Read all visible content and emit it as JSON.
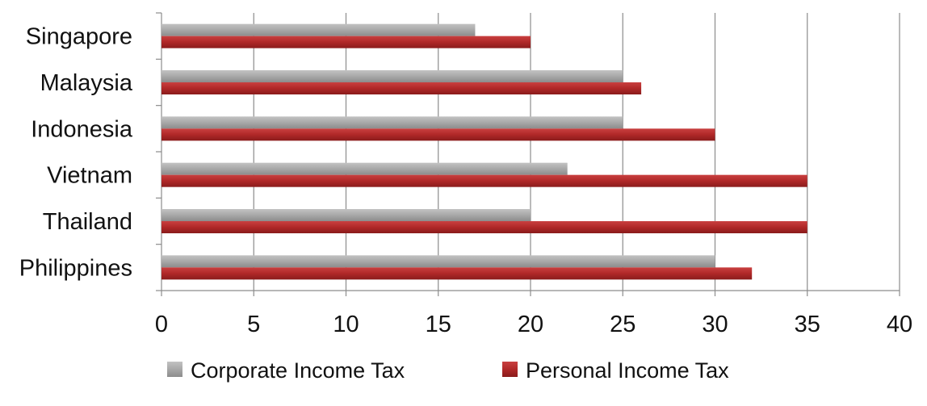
{
  "chart_data": {
    "type": "bar",
    "orientation": "horizontal",
    "categories": [
      "Singapore",
      "Malaysia",
      "Indonesia",
      "Vietnam",
      "Thailand",
      "Philippines"
    ],
    "series": [
      {
        "name": "Corporate Income Tax",
        "color": "#a6a6a6",
        "values": [
          17,
          25,
          25,
          22,
          20,
          30
        ]
      },
      {
        "name": "Personal Income Tax",
        "color": "#b22a2a",
        "values": [
          20,
          26,
          30,
          35,
          35,
          32
        ]
      }
    ],
    "x_ticks": [
      "0",
      "5",
      "10",
      "15",
      "20",
      "25",
      "30",
      "35",
      "40"
    ],
    "xlim": [
      0,
      40
    ],
    "grid": true,
    "legend_position": "bottom"
  }
}
